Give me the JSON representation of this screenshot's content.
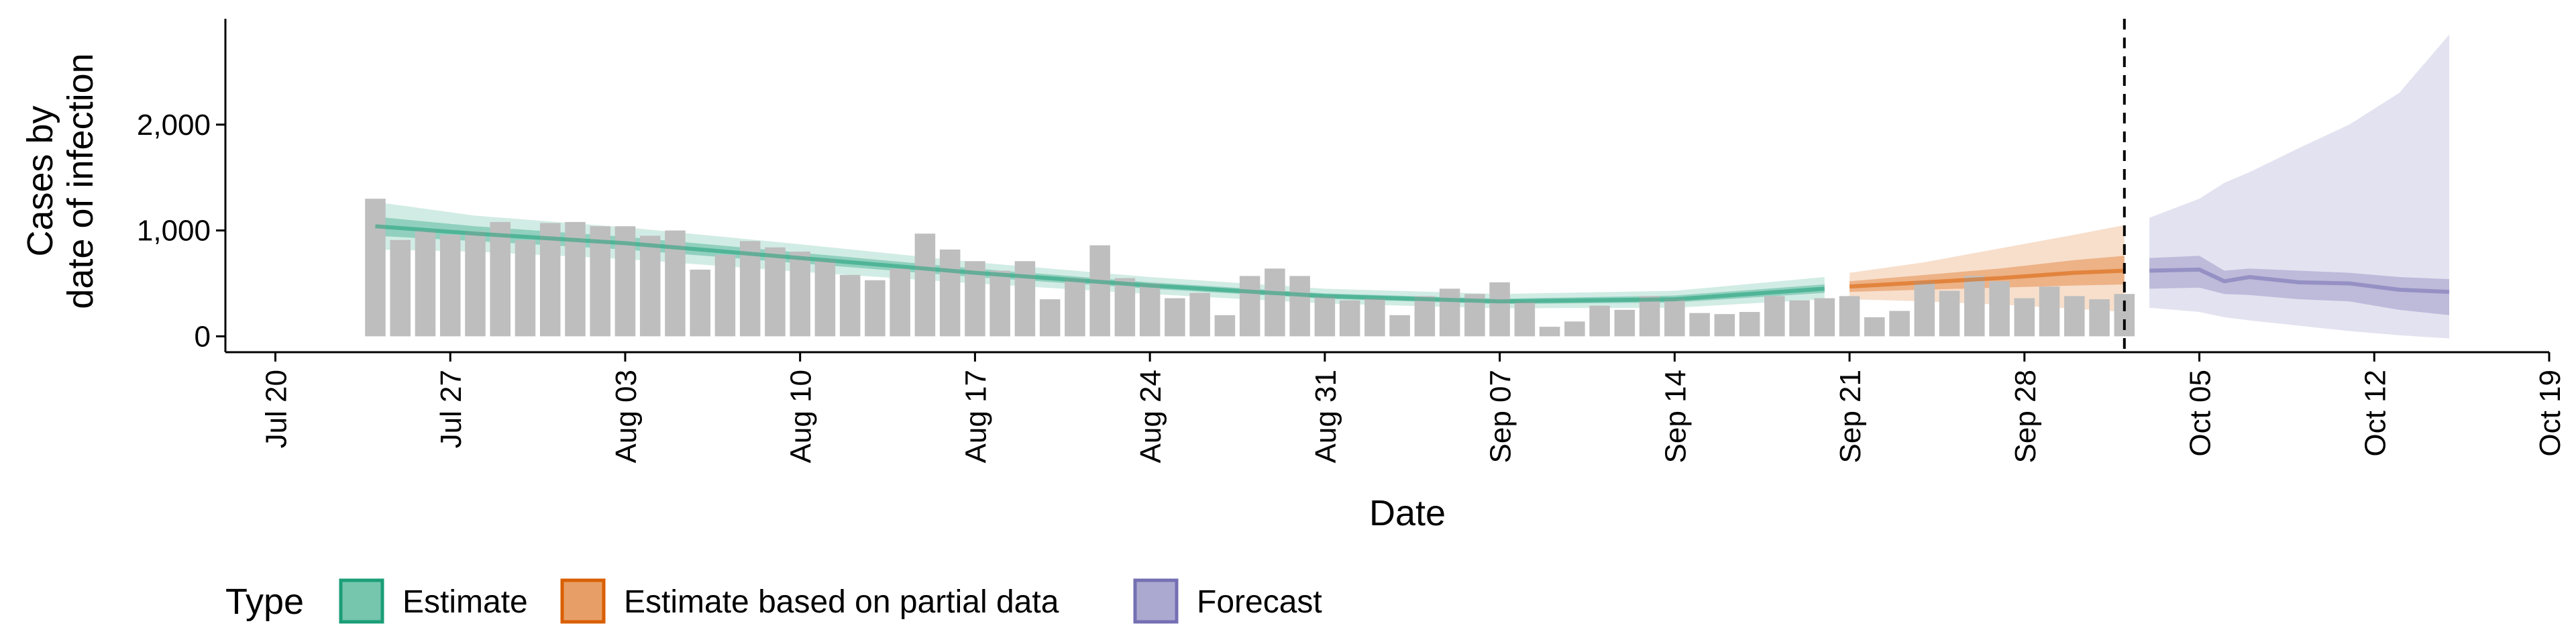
{
  "chart_data": {
    "type": "bar",
    "x_start": "2020-07-24",
    "xlabel": "Date",
    "ylabel": [
      "Cases by",
      "date of infection"
    ],
    "ylim": [
      -150,
      3000
    ],
    "y_ticks": [
      0,
      1000,
      2000
    ],
    "y_tick_labels": [
      "0",
      "1,000",
      "2,000"
    ],
    "x_ticks": [
      "2020-07-20",
      "2020-07-27",
      "2020-08-03",
      "2020-08-10",
      "2020-08-17",
      "2020-08-24",
      "2020-08-31",
      "2020-09-07",
      "2020-09-14",
      "2020-09-21",
      "2020-09-28",
      "2020-10-05",
      "2020-10-12",
      "2020-10-19"
    ],
    "x_tick_labels": [
      "Jul 20",
      "Jul 27",
      "Aug 03",
      "Aug 10",
      "Aug 17",
      "Aug 24",
      "Aug 31",
      "Sep 07",
      "Sep 14",
      "Sep 21",
      "Sep 28",
      "Oct 05",
      "Oct 12",
      "Oct 19"
    ],
    "xlim": [
      "2020-07-18",
      "2020-10-19"
    ],
    "bars": [
      1300,
      910,
      1000,
      960,
      990,
      1080,
      910,
      1070,
      1080,
      1040,
      1040,
      950,
      1000,
      630,
      770,
      900,
      840,
      800,
      730,
      580,
      530,
      640,
      970,
      820,
      710,
      620,
      710,
      350,
      550,
      860,
      550,
      500,
      360,
      410,
      200,
      570,
      640,
      570,
      380,
      340,
      360,
      200,
      380,
      450,
      400,
      510,
      330,
      90,
      140,
      290,
      250,
      380,
      360,
      220,
      210,
      230,
      380,
      340,
      360,
      380,
      180,
      240,
      520,
      430,
      570,
      520,
      360,
      470,
      380,
      350,
      400
    ],
    "vline": "2020-10-02",
    "series": [
      {
        "name": "Estimate",
        "color": "#1b9e77",
        "x": [
          "2020-07-26",
          "2020-08-02",
          "2020-08-09",
          "2020-08-16",
          "2020-08-23",
          "2020-08-30",
          "2020-09-06",
          "2020-09-13",
          "2020-09-20"
        ],
        "median": [
          980,
          900,
          810,
          690,
          560,
          450,
          360,
          310,
          330
        ],
        "inner": [
          [
            900,
            1060
          ],
          [
            840,
            960
          ],
          [
            760,
            860
          ],
          [
            650,
            730
          ],
          [
            530,
            590
          ],
          [
            420,
            480
          ],
          [
            340,
            380
          ],
          [
            290,
            330
          ],
          [
            310,
            350
          ]
        ],
        "outer": [
          [
            760,
            1200
          ],
          [
            720,
            1080
          ],
          [
            660,
            960
          ],
          [
            570,
            810
          ],
          [
            470,
            650
          ],
          [
            370,
            530
          ],
          [
            300,
            420
          ],
          [
            250,
            370
          ],
          [
            260,
            400
          ]
        ],
        "x_full": [
          "2020-07-24",
          "2020-07-28",
          "2020-08-03",
          "2020-08-10",
          "2020-08-17",
          "2020-08-24",
          "2020-08-31",
          "2020-09-07",
          "2020-09-14",
          "2020-09-20"
        ],
        "median_full": [
          1040,
          970,
          880,
          740,
          600,
          480,
          380,
          330,
          350,
          450
        ],
        "inner_full": [
          [
            950,
            1130
          ],
          [
            900,
            1040
          ],
          [
            820,
            940
          ],
          [
            690,
            790
          ],
          [
            560,
            640
          ],
          [
            450,
            510
          ],
          [
            355,
            405
          ],
          [
            305,
            355
          ],
          [
            320,
            385
          ],
          [
            410,
            490
          ]
        ],
        "outer_full": [
          [
            820,
            1270
          ],
          [
            800,
            1140
          ],
          [
            730,
            1030
          ],
          [
            610,
            870
          ],
          [
            500,
            700
          ],
          [
            400,
            560
          ],
          [
            310,
            450
          ],
          [
            265,
            400
          ],
          [
            270,
            430
          ],
          [
            350,
            560
          ]
        ]
      },
      {
        "name": "Estimate based on partial data",
        "color": "#d95f02",
        "x": [
          "2020-09-21",
          "2020-09-24",
          "2020-09-27",
          "2020-09-30",
          "2020-10-02"
        ],
        "median": [
          470,
          510,
          550,
          600,
          620
        ],
        "inner": [
          [
            420,
            520
          ],
          [
            440,
            580
          ],
          [
            460,
            640
          ],
          [
            480,
            720
          ],
          [
            490,
            760
          ]
        ],
        "outer": [
          [
            350,
            600
          ],
          [
            330,
            700
          ],
          [
            300,
            830
          ],
          [
            260,
            960
          ],
          [
            230,
            1050
          ]
        ]
      },
      {
        "name": "Forecast",
        "color": "#7570b3",
        "x": [
          "2020-10-03",
          "2020-10-05",
          "2020-10-06",
          "2020-10-07",
          "2020-10-09",
          "2020-10-11",
          "2020-10-13",
          "2020-10-15"
        ],
        "median": [
          620,
          630,
          520,
          560,
          510,
          500,
          440,
          420
        ],
        "inner": [
          [
            450,
            740
          ],
          [
            460,
            760
          ],
          [
            400,
            620
          ],
          [
            390,
            640
          ],
          [
            350,
            620
          ],
          [
            330,
            600
          ],
          [
            250,
            560
          ],
          [
            200,
            540
          ]
        ],
        "outer": [
          [
            270,
            1120
          ],
          [
            230,
            1300
          ],
          [
            180,
            1450
          ],
          [
            150,
            1550
          ],
          [
            100,
            1780
          ],
          [
            50,
            2000
          ],
          [
            10,
            2300
          ],
          [
            -20,
            2850
          ]
        ]
      }
    ],
    "legend_title": "Type",
    "legend_position": "bottom"
  }
}
